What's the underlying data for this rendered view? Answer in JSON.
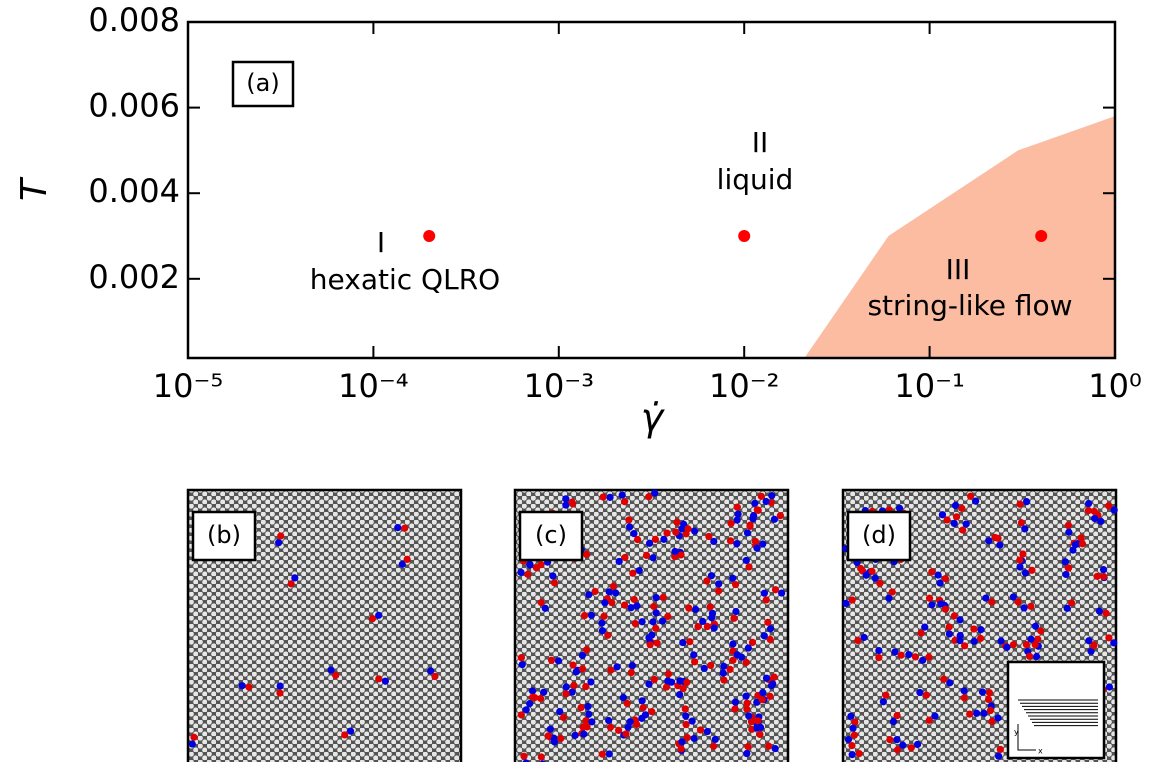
{
  "chart_data": {
    "type": "scatter",
    "x_label": "γ̇",
    "y_label": "T",
    "xscale": "log",
    "xlim": [
      1e-05,
      1
    ],
    "ylim": [
      0.00015,
      0.008
    ],
    "xticks": [
      {
        "value": 1e-05,
        "label": "10⁻⁵"
      },
      {
        "value": 0.0001,
        "label": "10⁻⁴"
      },
      {
        "value": 0.001,
        "label": "10⁻³"
      },
      {
        "value": 0.01,
        "label": "10⁻²"
      },
      {
        "value": 0.1,
        "label": "10⁻¹"
      },
      {
        "value": 1,
        "label": "10⁰"
      }
    ],
    "yticks": [
      0.002,
      0.004,
      0.006,
      0.008
    ],
    "points": {
      "color": "#ff0000",
      "x": [
        0.0002,
        0.01,
        0.4
      ],
      "y": [
        0.003,
        0.003,
        0.003
      ]
    },
    "region": {
      "color": "#fbbca2",
      "x": [
        0.02,
        0.06,
        0.3,
        1
      ],
      "y": [
        0,
        0.003,
        0.005,
        0.0058
      ]
    },
    "annotations": {
      "panel": "(a)",
      "phase1": "I",
      "phase1_name": "hexatic QLRO",
      "phase2": "II",
      "phase2_name": "liquid",
      "phase3": "III",
      "phase3_name": "string-like flow"
    }
  },
  "panels": [
    {
      "label": "(b)"
    },
    {
      "label": "(c)"
    },
    {
      "label": "(d)",
      "inset_axes": [
        "y",
        "x"
      ]
    }
  ]
}
